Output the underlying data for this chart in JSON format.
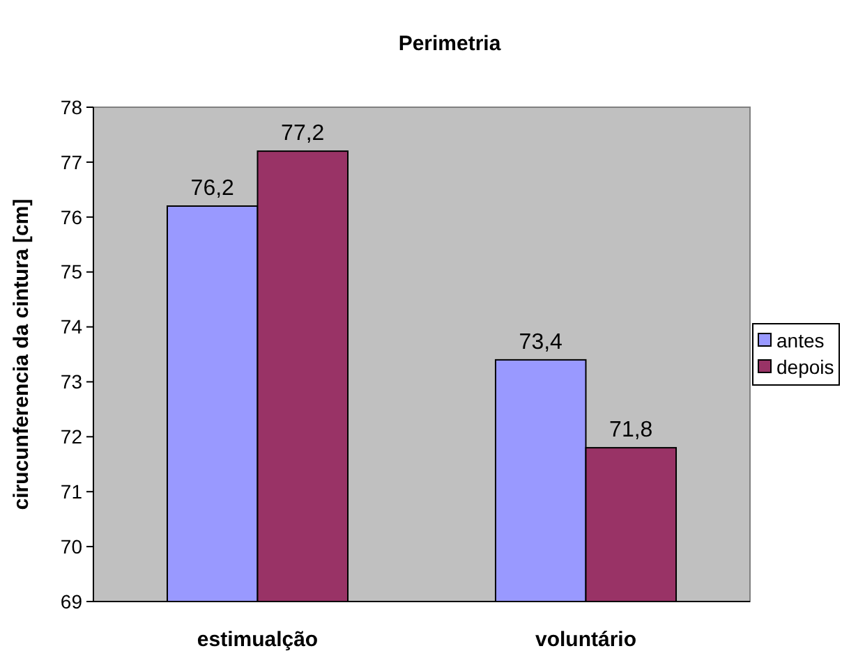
{
  "chart_data": {
    "type": "bar",
    "title": "Perimetria",
    "ylabel": "cirucunferencia da cintura [cm]",
    "categories": [
      "estimualção",
      "voluntário"
    ],
    "series": [
      {
        "name": "antes",
        "color": "#9999ff",
        "values": [
          76.2,
          73.4
        ],
        "value_labels": [
          "76,2",
          "73,4"
        ]
      },
      {
        "name": "depois",
        "color": "#993366",
        "values": [
          77.2,
          71.8
        ],
        "value_labels": [
          "77,2",
          "71,8"
        ]
      }
    ],
    "ylim": [
      69,
      78
    ],
    "yticks": [
      69,
      70,
      71,
      72,
      73,
      74,
      75,
      76,
      77,
      78
    ],
    "legend": "right",
    "grid": false
  }
}
